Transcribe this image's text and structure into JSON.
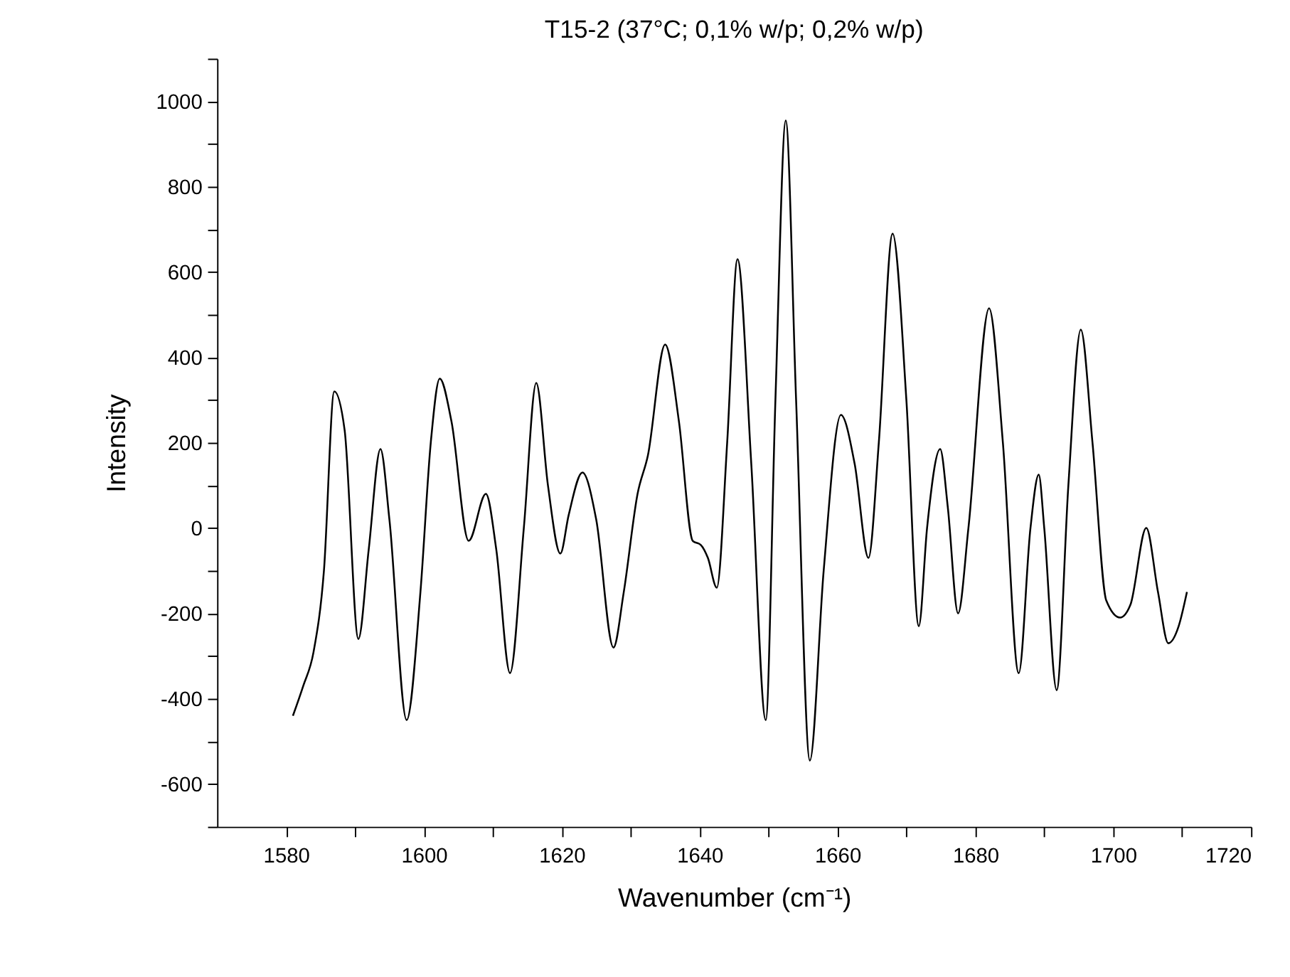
{
  "chart_data": {
    "type": "line",
    "title": "T15-2 (37°C; 0,1% w/p; 0,2% w/p)",
    "xlabel": "Wavenumber (cm⁻¹)",
    "ylabel": "Intensity",
    "xlim": [
      1570,
      1720
    ],
    "ylim": [
      -700,
      1100
    ],
    "xticks": [
      1580,
      {
        "value": 1590,
        "label": null
      },
      1600,
      {
        "value": 1610,
        "label": null
      },
      1620,
      {
        "value": 1630,
        "label": null
      },
      1640,
      {
        "value": 1650,
        "label": null
      },
      1660,
      {
        "value": 1670,
        "label": null
      },
      1680,
      {
        "value": 1690,
        "label": null
      },
      1700,
      {
        "value": 1710,
        "label": null
      },
      1720
    ],
    "yticks": [
      {
        "value": -700,
        "label": null
      },
      -600,
      {
        "value": -500,
        "label": null
      },
      -400,
      {
        "value": -300,
        "label": null
      },
      -200,
      {
        "value": -100,
        "label": null
      },
      0,
      {
        "value": 100,
        "label": null
      },
      200,
      {
        "value": 300,
        "label": null
      },
      400,
      {
        "value": 500,
        "label": null
      },
      600,
      {
        "value": 700,
        "label": null
      },
      800,
      {
        "value": 900,
        "label": null
      },
      1000,
      {
        "value": 1100,
        "label": null
      }
    ],
    "grid": false,
    "marker": "none",
    "line_style": "solid",
    "series": [
      {
        "color": "#000000",
        "x": [
          1581,
          1582.5,
          1584,
          1585.5,
          1587,
          1588.5,
          1590.5,
          1592,
          1593.7,
          1595,
          1597.5,
          1599.5,
          1601,
          1602.3,
          1604,
          1606.5,
          1609,
          1610.5,
          1612.5,
          1614.5,
          1616.3,
          1618,
          1619.8,
          1621,
          1623,
          1625,
          1627.5,
          1629,
          1631,
          1632.5,
          1635,
          1637,
          1639,
          1640.2,
          1641.2,
          1642.5,
          1644,
          1645.5,
          1647.5,
          1649.6,
          1651,
          1652.5,
          1654,
          1656,
          1658,
          1660.5,
          1662.5,
          1664.5,
          1666,
          1668,
          1670,
          1671.8,
          1673,
          1674.9,
          1676,
          1677.5,
          1679,
          1682,
          1684,
          1686.3,
          1688,
          1689.2,
          1690,
          1691.8,
          1693.5,
          1695.3,
          1697,
          1699,
          1701,
          1702.5,
          1704.8,
          1706.5,
          1708,
          1709.5,
          1710.7
        ],
        "values": [
          -440,
          -370,
          -290,
          -100,
          320,
          230,
          -260,
          -50,
          185,
          20,
          -450,
          -150,
          200,
          350,
          250,
          -30,
          80,
          -50,
          -340,
          0,
          340,
          100,
          -60,
          30,
          130,
          20,
          -280,
          -150,
          80,
          170,
          430,
          250,
          -30,
          -40,
          -70,
          -140,
          200,
          630,
          150,
          -450,
          300,
          955,
          300,
          -545,
          -100,
          265,
          150,
          -70,
          200,
          690,
          300,
          -230,
          0,
          185,
          50,
          -200,
          0,
          515,
          200,
          -340,
          0,
          125,
          0,
          -380,
          100,
          465,
          200,
          -170,
          -210,
          -180,
          0,
          -150,
          -270,
          -230,
          -150
        ]
      }
    ]
  }
}
